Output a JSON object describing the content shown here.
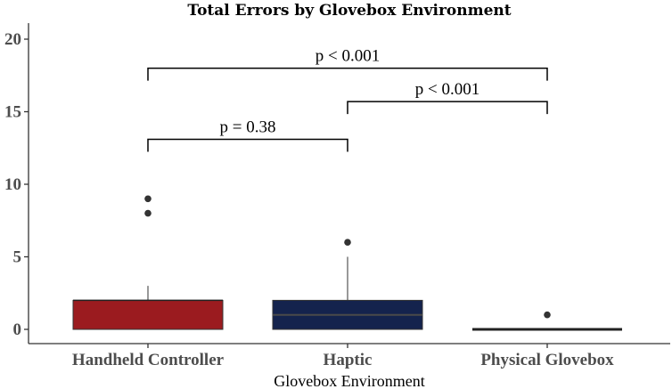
{
  "chart_data": {
    "type": "box",
    "title": "Total Errors by Glovebox Environment",
    "xlabel": "Glovebox Environment",
    "ylabel": "",
    "ylim": [
      0,
      21
    ],
    "yticks": [
      0,
      5,
      10,
      15,
      20
    ],
    "grid": false,
    "categories": [
      "Handheld Controller",
      "Haptic",
      "Physical Glovebox"
    ],
    "boxes": [
      {
        "category": "Handheld Controller",
        "q1": 0,
        "median": 2,
        "q3": 2,
        "whisker_low": 0,
        "whisker_high": 3,
        "outliers": [
          8,
          9
        ],
        "color": "#9b1b1f"
      },
      {
        "category": "Haptic",
        "q1": 0,
        "median": 1,
        "q3": 2,
        "whisker_low": 0,
        "whisker_high": 5,
        "outliers": [
          6
        ],
        "color": "#14234d"
      },
      {
        "category": "Physical Glovebox",
        "q1": 0,
        "median": 0,
        "q3": 0,
        "whisker_low": 0,
        "whisker_high": 0,
        "outliers": [
          1
        ],
        "color": "#14234d"
      }
    ],
    "significance": [
      {
        "from": "Handheld Controller",
        "to": "Physical Glovebox",
        "label": "p < 0.001",
        "y": 18
      },
      {
        "from": "Haptic",
        "to": "Physical Glovebox",
        "label": "p < 0.001",
        "y": 15.7
      },
      {
        "from": "Handheld Controller",
        "to": "Haptic",
        "label": "p = 0.38",
        "y": 13.1
      }
    ]
  }
}
